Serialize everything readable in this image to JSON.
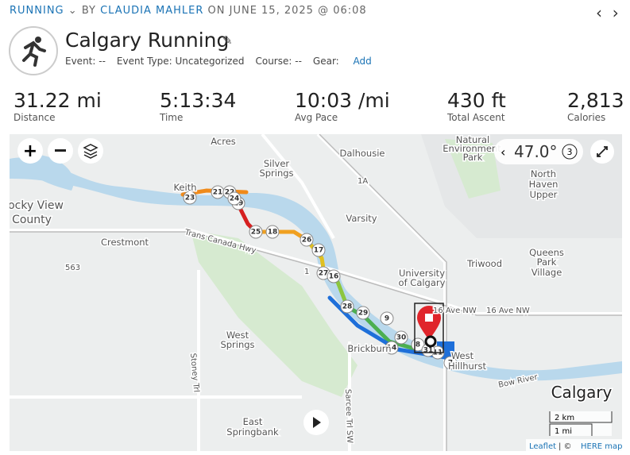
{
  "header": {
    "sport": "RUNNING",
    "by": "BY",
    "author": "CLAUDIA MAHLER",
    "date": "ON JUNE 15, 2025 @ 06:08",
    "title": "Calgary Running",
    "meta": {
      "event": "Event: --",
      "event_type": "Event Type: Uncategorized",
      "course": "Course: --",
      "gear": "Gear:",
      "gear_add": "Add"
    }
  },
  "stats": [
    {
      "value": "31.22 mi",
      "label": "Distance"
    },
    {
      "value": "5:13:34",
      "label": "Time"
    },
    {
      "value": "10:03 /mi",
      "label": "Avg Pace"
    },
    {
      "value": "430 ft",
      "label": "Total Ascent"
    },
    {
      "value": "2,813",
      "label": "Calories"
    }
  ],
  "map": {
    "places": [
      "Acres",
      "Silver",
      "Springs",
      "Dalhousie",
      "Natural",
      "Environment",
      "Park",
      "North",
      "Haven",
      "Upper",
      "Keith",
      "ocky View",
      "County",
      "Varsity",
      "Crestmont",
      "Triwood",
      "University",
      "of Calgary",
      "Queens",
      "Park",
      "Village",
      "West",
      "Springs",
      "Brickburn",
      "West",
      "Hillhurst",
      "East",
      "Springbank",
      "Calgary"
    ],
    "roads": [
      "Trans Canada Hwy",
      "16 Ave NW",
      "16 Ave NW",
      "Stoney Trl",
      "Sarcee Trl SW",
      "Bow River",
      "1A",
      "563",
      "1"
    ],
    "markers": [
      "23",
      "21",
      "22",
      "24",
      "19",
      "25",
      "18",
      "26",
      "17",
      "27",
      "16",
      "28",
      "29",
      "9",
      "30",
      "8",
      "31",
      "11",
      "14",
      "7"
    ],
    "rotation": "47.0°",
    "rotation_count": "3",
    "scale_km": "2 km",
    "scale_mi": "1 mi",
    "attribution_leaflet": "Leaflet",
    "attribution_sep": "| ©",
    "attribution_here": "HERE maps"
  }
}
